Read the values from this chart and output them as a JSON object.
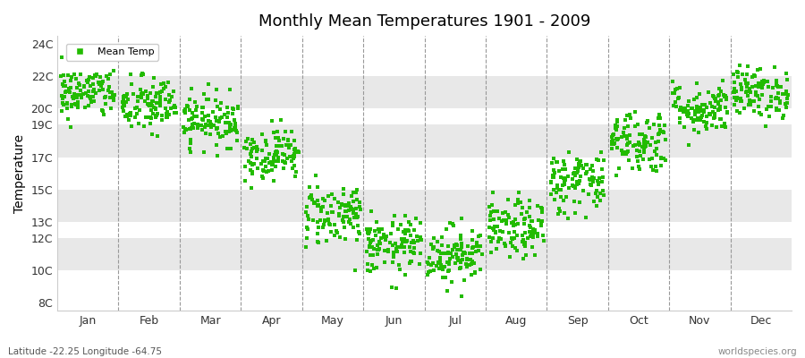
{
  "title": "Monthly Mean Temperatures 1901 - 2009",
  "ylabel": "Temperature",
  "xlabel_note": "Latitude -22.25 Longitude -64.75",
  "watermark": "worldspecies.org",
  "yticks": [
    8,
    10,
    12,
    13,
    15,
    17,
    19,
    20,
    22,
    24
  ],
  "ytick_labels": [
    "8C",
    "10C",
    "12C",
    "13C",
    "15C",
    "17C",
    "19C",
    "20C",
    "22C",
    "24C"
  ],
  "ylim": [
    7.5,
    24.5
  ],
  "months": [
    "Jan",
    "Feb",
    "Mar",
    "Apr",
    "May",
    "Jun",
    "Jul",
    "Aug",
    "Sep",
    "Oct",
    "Nov",
    "Dec"
  ],
  "dot_color": "#22bb00",
  "background_color": "#ffffff",
  "plot_bg_color": "#ffffff",
  "band_color_light": "#ffffff",
  "band_color_dark": "#e8e8e8",
  "dot_size": 5,
  "legend_label": "Mean Temp",
  "monthly_means": [
    21.0,
    20.2,
    19.3,
    17.2,
    13.5,
    11.5,
    11.0,
    12.5,
    15.5,
    18.0,
    20.0,
    21.0
  ],
  "monthly_stds": [
    0.8,
    0.9,
    0.8,
    0.8,
    1.0,
    0.9,
    0.9,
    0.9,
    1.0,
    1.0,
    0.8,
    0.8
  ],
  "n_years": 109,
  "figwidth": 9.0,
  "figheight": 4.0,
  "dpi": 100
}
